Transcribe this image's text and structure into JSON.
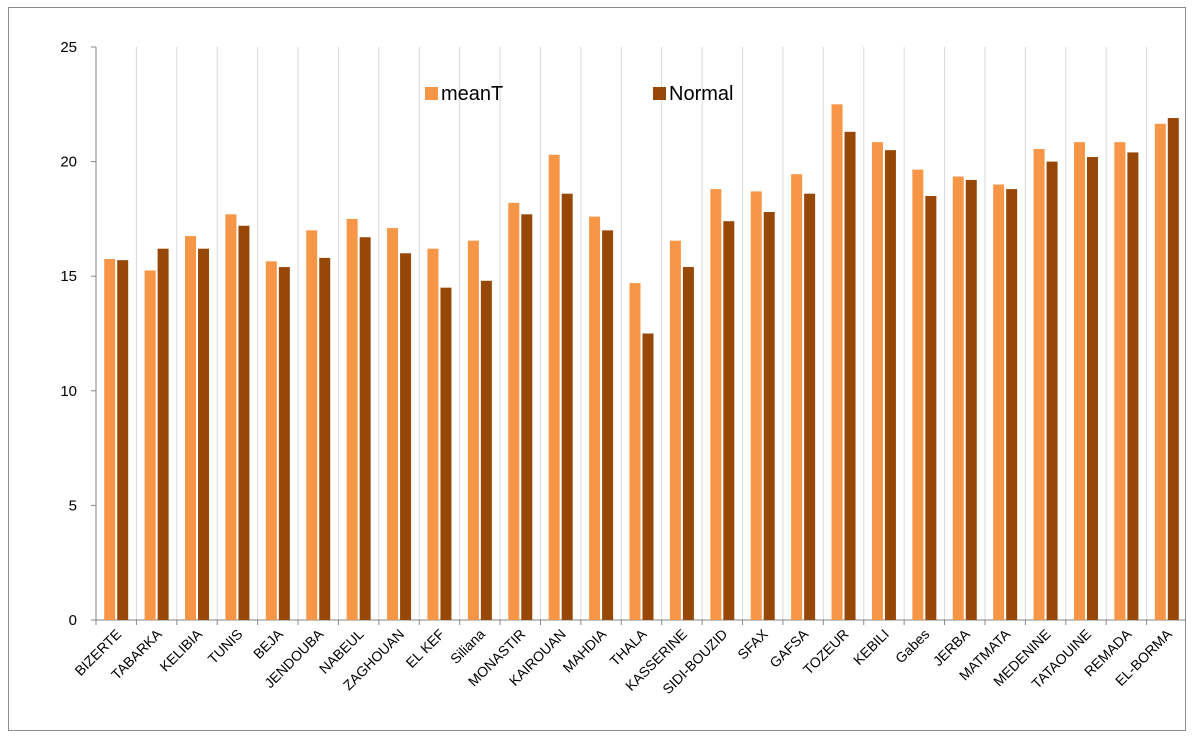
{
  "chart_data": {
    "type": "bar",
    "title": "",
    "xlabel": "",
    "ylabel": "",
    "ylim": [
      0,
      25
    ],
    "yticks": [
      0,
      5,
      10,
      15,
      20,
      25
    ],
    "grid": "vertical",
    "legend_position": "top-center",
    "categories": [
      "BIZERTE",
      "TABARKA",
      "KELIBIA",
      "TUNIS",
      "BEJA",
      "JENDOUBA",
      "NABEUL",
      "ZAGHOUAN",
      "EL KEF",
      "Siliana",
      "MONASTIR",
      "KAIROUAN",
      "MAHDIA",
      "THALA",
      "KASSERINE",
      "SIDI-BOUZID",
      "SFAX",
      "GAFSA",
      "TOZEUR",
      "KEBILI",
      "Gabes",
      "JERBA",
      "MATMATA",
      "MEDENINE",
      "TATAOUINE",
      "REMADA",
      "EL-BORMA"
    ],
    "series": [
      {
        "name": "meanT",
        "color": "#f79646",
        "values": [
          15.75,
          15.25,
          16.75,
          17.7,
          15.65,
          17.0,
          17.5,
          17.1,
          16.2,
          16.55,
          18.2,
          20.3,
          17.6,
          14.7,
          16.55,
          18.8,
          18.7,
          19.45,
          22.5,
          20.85,
          19.65,
          19.35,
          19.0,
          20.55,
          20.85,
          20.85,
          21.65
        ]
      },
      {
        "name": "Normal",
        "color": "#974806",
        "values": [
          15.7,
          16.2,
          16.2,
          17.2,
          15.4,
          15.8,
          16.7,
          16.0,
          14.5,
          14.8,
          17.7,
          18.6,
          17.0,
          12.5,
          15.4,
          17.4,
          17.8,
          18.6,
          21.3,
          20.5,
          18.5,
          19.2,
          18.8,
          20.0,
          20.2,
          20.4,
          21.9
        ]
      }
    ]
  }
}
